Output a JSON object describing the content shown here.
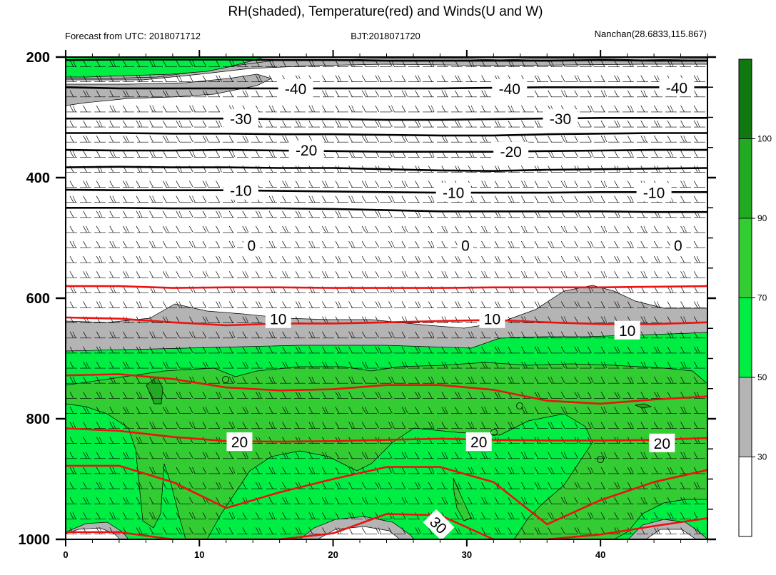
{
  "header": {
    "title": "RH(shaded), Temperature(red) and Winds(U and W)",
    "left": "Forecast from UTC: 2018071712",
    "center": "BJT:2018071720",
    "right": "Nanchan(28.6833,115.867)"
  },
  "chart_data": {
    "type": "contour",
    "title": "RH(shaded), Temperature(red) and Winds(U and W)",
    "x": {
      "range": [
        0,
        48
      ],
      "ticks": [
        0,
        10,
        20,
        30,
        40
      ],
      "label": ""
    },
    "y": {
      "range": [
        1000,
        200
      ],
      "ticks": [
        200,
        400,
        600,
        800,
        1000
      ],
      "label": ""
    },
    "colorbar": {
      "labels": [
        "30",
        "50",
        "70",
        "90",
        "100"
      ],
      "levels": [
        {
          "from": 0,
          "to": 30,
          "color": "#ffffff"
        },
        {
          "from": 30,
          "to": 50,
          "color": "#b4b4b4"
        },
        {
          "from": 50,
          "to": 70,
          "color": "#00ee44"
        },
        {
          "from": 70,
          "to": 90,
          "color": "#33cc33"
        },
        {
          "from": 90,
          "to": 100,
          "color": "#22aa22"
        },
        {
          "from": 100,
          "to": 110,
          "color": "#117711"
        }
      ]
    },
    "temperature_labels": [
      {
        "text": "-40",
        "x": 17.2,
        "y": 252
      },
      {
        "text": "-40",
        "x": 33.2,
        "y": 252
      },
      {
        "text": "-40",
        "x": 45.7,
        "y": 250
      },
      {
        "text": "-30",
        "x": 13.1,
        "y": 302
      },
      {
        "text": "-30",
        "x": 37.0,
        "y": 302
      },
      {
        "text": "-20",
        "x": 18.0,
        "y": 354
      },
      {
        "text": "-20",
        "x": 33.3,
        "y": 356
      },
      {
        "text": "-10",
        "x": 13.1,
        "y": 421
      },
      {
        "text": "-10",
        "x": 29.0,
        "y": 424
      },
      {
        "text": "-10",
        "x": 44.0,
        "y": 424
      },
      {
        "text": "0",
        "x": 13.9,
        "y": 512
      },
      {
        "text": "0",
        "x": 29.9,
        "y": 512
      },
      {
        "text": "0",
        "x": 45.8,
        "y": 512
      },
      {
        "text": "10",
        "x": 15.9,
        "y": 634
      },
      {
        "text": "10",
        "x": 31.9,
        "y": 634
      },
      {
        "text": "10",
        "x": 42.0,
        "y": 653
      },
      {
        "text": "20",
        "x": 13.0,
        "y": 838
      },
      {
        "text": "20",
        "x": 30.9,
        "y": 838
      },
      {
        "text": "20",
        "x": 44.6,
        "y": 840
      },
      {
        "text": "30",
        "x": 27.9,
        "y": 976
      }
    ],
    "cold_isotherms": [
      {
        "value": -40,
        "y": [
          205,
          204,
          204,
          204,
          205,
          205,
          206,
          206,
          206,
          206,
          205,
          206,
          206
        ]
      },
      {
        "value": -40,
        "y": [
          250,
          252,
          252,
          252,
          252,
          252,
          252,
          252,
          251,
          250,
          250,
          250,
          250
        ]
      },
      {
        "value": -30,
        "y": [
          302,
          302,
          302,
          302,
          303,
          303,
          304,
          304,
          303,
          302,
          301,
          301,
          301
        ]
      },
      {
        "value": -30,
        "y": [
          326,
          326,
          327,
          327,
          328,
          328,
          329,
          330,
          330,
          328,
          327,
          326,
          326
        ]
      },
      {
        "value": -20,
        "y": [
          354,
          355,
          355,
          354,
          355,
          356,
          357,
          357,
          357,
          356,
          355,
          354,
          354
        ]
      },
      {
        "value": -20,
        "y": [
          383,
          382,
          383,
          383,
          384,
          384,
          386,
          388,
          389,
          387,
          386,
          385,
          384
        ]
      },
      {
        "value": -10,
        "y": [
          420,
          421,
          421,
          421,
          422,
          423,
          424,
          425,
          425,
          425,
          424,
          424,
          424
        ]
      },
      {
        "value": -10,
        "y": [
          450,
          450,
          451,
          451,
          451,
          452,
          454,
          456,
          456,
          456,
          456,
          457,
          457
        ]
      }
    ],
    "warm_isotherms": [
      {
        "value": 0,
        "y": [
          580,
          580,
          583,
          582,
          582,
          583,
          583,
          583,
          582,
          582,
          582,
          581,
          580
        ]
      },
      {
        "value": 10,
        "y": [
          632,
          634,
          640,
          645,
          642,
          642,
          640,
          638,
          636,
          640,
          643,
          643,
          640
        ]
      },
      {
        "value": 10,
        "y": [
          728,
          726,
          734,
          748,
          753,
          751,
          744,
          744,
          752,
          770,
          775,
          768,
          763
        ]
      },
      {
        "value": 20,
        "y": [
          816,
          820,
          830,
          837,
          838,
          837,
          835,
          833,
          835,
          836,
          836,
          835,
          832
        ]
      },
      {
        "value": 20,
        "y": [
          878,
          878,
          905,
          948,
          922,
          900,
          880,
          880,
          905,
          975,
          935,
          905,
          885
        ]
      },
      {
        "value": 30,
        "y": [
          988,
          988,
          1000,
          1000,
          1000,
          990,
          958,
          960,
          1000,
          1000,
          992,
          978,
          965
        ]
      }
    ],
    "wind_rows": [
      216,
      241,
      266,
      291,
      316,
      341,
      366,
      391,
      416,
      441,
      466,
      491,
      516,
      541,
      566,
      591,
      616,
      641,
      666,
      691,
      716,
      741,
      766,
      791,
      816,
      841,
      866,
      891,
      916,
      941,
      966,
      991
    ]
  }
}
